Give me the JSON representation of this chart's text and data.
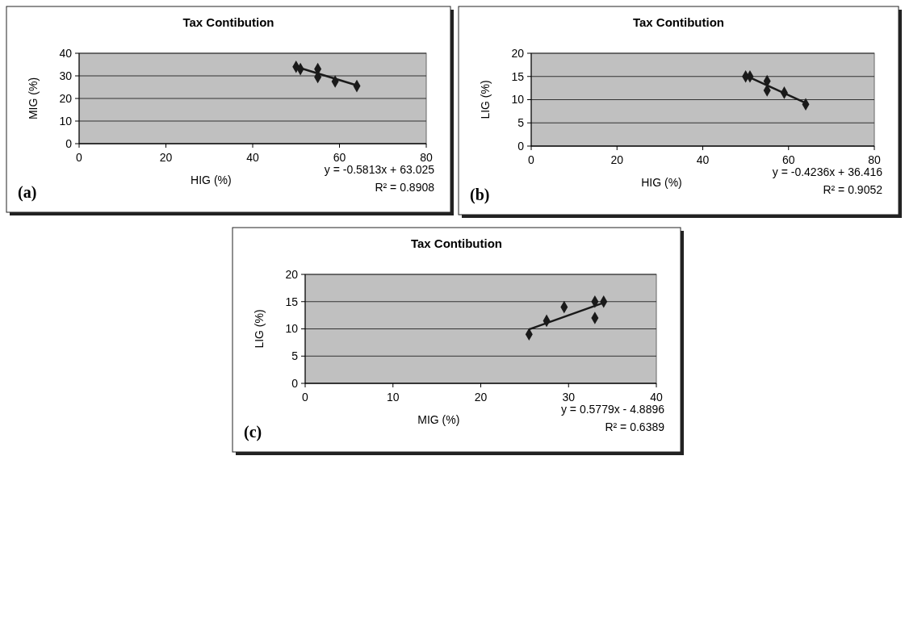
{
  "chart_data": [
    {
      "type": "scatter",
      "title": "Tax Contibution",
      "xlabel": "HIG (%)",
      "ylabel": "MIG (%)",
      "xlim": [
        0,
        80
      ],
      "xticks": [
        0,
        20,
        40,
        60,
        80
      ],
      "ylim": [
        0,
        40
      ],
      "yticks": [
        0,
        10,
        20,
        30,
        40
      ],
      "grid": "y",
      "annotations": [
        "(a)",
        "y = -0.5813x + 63.025",
        "R² = 0.8908"
      ],
      "series": [
        {
          "color": "#1a1a1a",
          "marker": "diamond",
          "x": [
            50,
            51,
            55,
            55,
            59,
            64
          ],
          "values": [
            34,
            33,
            33,
            29.5,
            27.5,
            25.5
          ]
        },
        {
          "type": "line",
          "color": "#1a1a1a",
          "x": [
            50,
            64
          ],
          "values": [
            34.0,
            25.8
          ]
        }
      ]
    },
    {
      "type": "scatter",
      "title": "Tax Contibution",
      "xlabel": "HIG (%)",
      "ylabel": "LIG (%)",
      "xlim": [
        0,
        80
      ],
      "xticks": [
        0,
        20,
        40,
        60,
        80
      ],
      "ylim": [
        0,
        20
      ],
      "yticks": [
        0,
        5,
        10,
        15,
        20
      ],
      "grid": "y",
      "annotations": [
        "(b)",
        "y = -0.4236x + 36.416",
        "R² = 0.9052"
      ],
      "series": [
        {
          "color": "#1a1a1a",
          "marker": "diamond",
          "x": [
            50,
            51,
            55,
            55,
            59,
            64
          ],
          "values": [
            15,
            15,
            12,
            14,
            11.5,
            9
          ]
        },
        {
          "type": "line",
          "color": "#1a1a1a",
          "x": [
            50,
            64
          ],
          "values": [
            15.2,
            9.3
          ]
        }
      ]
    },
    {
      "type": "scatter",
      "title": "Tax Contibution",
      "xlabel": "MIG (%)",
      "ylabel": "LIG (%)",
      "xlim": [
        0,
        40
      ],
      "xticks": [
        0,
        10,
        20,
        30,
        40
      ],
      "ylim": [
        0,
        20
      ],
      "yticks": [
        0,
        5,
        10,
        15,
        20
      ],
      "grid": "y",
      "annotations": [
        "(c)",
        "y = 0.5779x - 4.8896",
        "R² = 0.6389"
      ],
      "series": [
        {
          "color": "#1a1a1a",
          "marker": "diamond",
          "x": [
            34,
            33,
            33,
            29.5,
            27.5,
            25.5
          ],
          "values": [
            15,
            15,
            12,
            14,
            11.5,
            9
          ]
        },
        {
          "type": "line",
          "color": "#1a1a1a",
          "x": [
            25.5,
            34
          ],
          "values": [
            9.9,
            14.8
          ]
        }
      ]
    }
  ]
}
